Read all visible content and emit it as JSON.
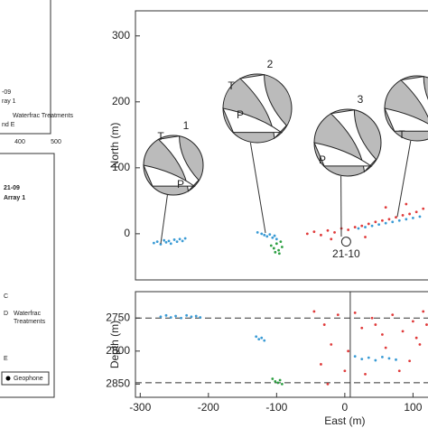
{
  "chart_data": [
    {
      "type": "scatter",
      "ylabel": "North (m)",
      "ylim": [
        -70,
        338
      ],
      "yticks": [
        0,
        100,
        200,
        300
      ],
      "xlim": [
        -307,
        122
      ],
      "series": [
        {
          "color": "#3a9bd5",
          "x": [
            -280,
            -275,
            -270,
            -265,
            -262,
            -258,
            -255,
            -250,
            -246,
            -242,
            -238,
            -234
          ],
          "values": [
            -14,
            -12,
            -16,
            -10,
            -13,
            -11,
            -15,
            -9,
            -12,
            -8,
            -11,
            -7
          ]
        },
        {
          "color": "#3a9bd5",
          "x": [
            -128,
            -122,
            -118,
            -114,
            -110,
            -106,
            -103,
            -100
          ],
          "values": [
            2,
            0,
            -2,
            -4,
            -1,
            -6,
            -3,
            -8
          ]
        },
        {
          "color": "#2ea043",
          "x": [
            -108,
            -104,
            -100,
            -97,
            -94,
            -92,
            -102,
            -96
          ],
          "values": [
            -18,
            -22,
            -15,
            -25,
            -12,
            -20,
            -28,
            -30
          ]
        },
        {
          "color": "#e03a3a",
          "x": [
            -55,
            -45,
            -35,
            -25,
            -15,
            -5,
            5,
            15,
            25,
            35,
            45,
            55,
            65,
            75,
            85,
            95,
            105,
            115,
            -20,
            30,
            60,
            90
          ],
          "values": [
            0,
            3,
            -2,
            5,
            2,
            8,
            6,
            10,
            12,
            15,
            18,
            20,
            22,
            25,
            28,
            30,
            33,
            38,
            -8,
            -5,
            40,
            45
          ]
        },
        {
          "color": "#3a9bd5",
          "x": [
            20,
            30,
            40,
            50,
            60,
            70,
            80,
            90,
            100,
            110
          ],
          "values": [
            8,
            10,
            12,
            14,
            16,
            18,
            20,
            22,
            24,
            26
          ]
        }
      ],
      "stations": [
        {
          "label": "21-10",
          "x": 2,
          "y": -12
        }
      ],
      "annotations": [
        "1",
        "2",
        "3",
        "T",
        "P",
        "T",
        "P",
        "P",
        "T"
      ]
    },
    {
      "type": "scatter",
      "xlabel": "East (m)",
      "ylabel": "Depth (m)",
      "ylim": [
        2710,
        2870
      ],
      "yticks": [
        2750,
        2800,
        2850
      ],
      "y_inverted": true,
      "xlim": [
        -307,
        122
      ],
      "xticks": [
        -300,
        -200,
        -100,
        0,
        100
      ],
      "series": [
        {
          "color": "#3a9bd5",
          "x": [
            -270,
            -262,
            -255,
            -248,
            -240,
            -232,
            -225,
            -218,
            -212
          ],
          "values": [
            2748,
            2746,
            2749,
            2747,
            2750,
            2746,
            2748,
            2747,
            2749
          ]
        },
        {
          "color": "#3a9bd5",
          "x": [
            -130,
            -126,
            -122,
            -118
          ],
          "values": [
            2778,
            2782,
            2780,
            2784
          ]
        },
        {
          "color": "#2ea043",
          "x": [
            -106,
            -102,
            -98,
            -95,
            -92
          ],
          "values": [
            2842,
            2846,
            2848,
            2844,
            2850
          ]
        },
        {
          "color": "#e03a3a",
          "x": [
            -45,
            -30,
            -20,
            -10,
            0,
            15,
            25,
            40,
            55,
            70,
            85,
            100,
            110,
            120,
            -35,
            5,
            30,
            60,
            95,
            115,
            -25,
            45,
            80,
            105
          ],
          "values": [
            2740,
            2760,
            2790,
            2745,
            2830,
            2742,
            2765,
            2750,
            2775,
            2745,
            2770,
            2755,
            2790,
            2760,
            2820,
            2800,
            2835,
            2795,
            2815,
            2740,
            2850,
            2760,
            2830,
            2780
          ]
        },
        {
          "color": "#3a9bd5",
          "x": [
            15,
            25,
            35,
            45,
            55,
            65,
            75
          ],
          "values": [
            2808,
            2812,
            2810,
            2814,
            2809,
            2811,
            2813
          ]
        }
      ],
      "hlines": [
        2750,
        2848
      ],
      "vline": 8
    }
  ],
  "left_panels": {
    "top": [
      "-09",
      "ray 1",
      "Waterfrac Treatments",
      "nd E",
      "400",
      "500"
    ],
    "bottom": [
      "21-09",
      "Array 1",
      "C",
      "D",
      "Waterfrac",
      "Treatments",
      "E",
      "Geophone"
    ]
  }
}
